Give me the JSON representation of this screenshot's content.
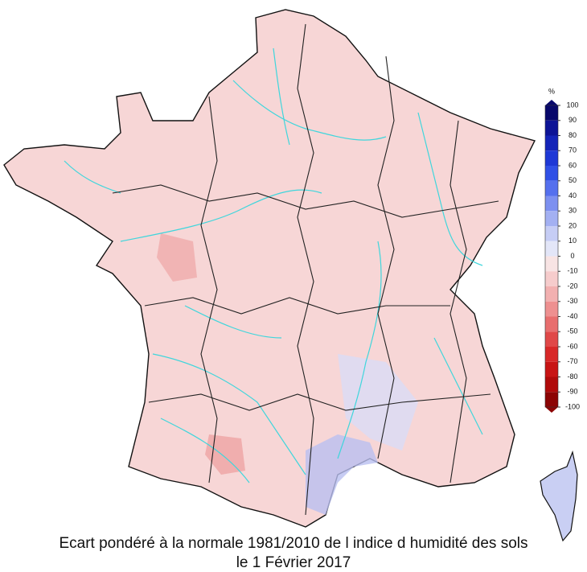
{
  "title_lines": [
    "Ecart pondéré à la normale 1981/2010 de l indice d humidité des sols",
    "le 1 Février 2017"
  ],
  "colorbar": {
    "unit": "%",
    "ticks": [
      100,
      90,
      80,
      70,
      60,
      50,
      40,
      30,
      20,
      10,
      0,
      -10,
      -20,
      -30,
      -40,
      -50,
      -60,
      -70,
      -80,
      -90,
      -100
    ],
    "colors": [
      "#08086b",
      "#0d1496",
      "#1424b8",
      "#1e38d6",
      "#3050e6",
      "#5570ee",
      "#7d90f0",
      "#a3b0f2",
      "#c6cdf5",
      "#e3e6f8",
      "#f8e4e4",
      "#f6cccc",
      "#f2b0b0",
      "#ee9090",
      "#e86e6e",
      "#e04848",
      "#d82828",
      "#c81414",
      "#b00a0a",
      "#8c0404"
    ]
  }
}
